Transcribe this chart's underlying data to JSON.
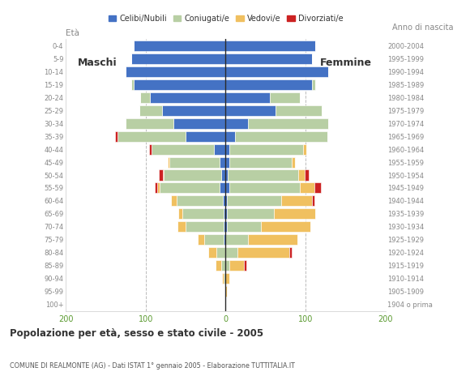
{
  "age_groups": [
    "100+",
    "95-99",
    "90-94",
    "85-89",
    "80-84",
    "75-79",
    "70-74",
    "65-69",
    "60-64",
    "55-59",
    "50-54",
    "45-49",
    "40-44",
    "35-39",
    "30-34",
    "25-29",
    "20-24",
    "15-19",
    "10-14",
    "5-9",
    "0-4"
  ],
  "birth_years": [
    "1904 o prima",
    "1905-1909",
    "1910-1914",
    "1915-1919",
    "1920-1924",
    "1925-1929",
    "1930-1934",
    "1935-1939",
    "1940-1944",
    "1945-1949",
    "1950-1954",
    "1955-1959",
    "1960-1964",
    "1965-1969",
    "1970-1974",
    "1975-1979",
    "1980-1984",
    "1985-1989",
    "1990-1994",
    "1995-1999",
    "2000-2004"
  ],
  "males": {
    "celibi": [
      0,
      0,
      0,
      0,
      0,
      2,
      2,
      2,
      3,
      8,
      5,
      8,
      15,
      50,
      65,
      80,
      95,
      115,
      125,
      118,
      115
    ],
    "coniugati": [
      0,
      0,
      2,
      5,
      12,
      25,
      48,
      52,
      58,
      75,
      72,
      62,
      78,
      85,
      60,
      28,
      12,
      3,
      0,
      0,
      0
    ],
    "vedovi": [
      0,
      0,
      2,
      8,
      10,
      8,
      10,
      5,
      7,
      3,
      2,
      2,
      0,
      0,
      0,
      0,
      0,
      0,
      0,
      0,
      0
    ],
    "divorziati": [
      0,
      0,
      0,
      0,
      0,
      0,
      0,
      0,
      0,
      3,
      5,
      0,
      3,
      3,
      0,
      0,
      0,
      0,
      0,
      0,
      0
    ]
  },
  "females": {
    "nubili": [
      0,
      0,
      0,
      0,
      0,
      0,
      2,
      2,
      2,
      5,
      3,
      5,
      5,
      12,
      28,
      62,
      55,
      108,
      128,
      108,
      112
    ],
    "coniugate": [
      0,
      0,
      0,
      5,
      15,
      28,
      42,
      58,
      68,
      88,
      88,
      78,
      92,
      115,
      100,
      58,
      38,
      4,
      0,
      0,
      0
    ],
    "vedove": [
      0,
      2,
      5,
      18,
      65,
      62,
      62,
      52,
      38,
      18,
      8,
      4,
      4,
      0,
      0,
      0,
      0,
      0,
      0,
      0,
      0
    ],
    "divorziate": [
      0,
      0,
      0,
      3,
      3,
      0,
      0,
      0,
      3,
      8,
      5,
      0,
      0,
      0,
      0,
      0,
      0,
      0,
      0,
      0,
      0
    ]
  },
  "colors": {
    "celibi": "#4472c4",
    "coniugati": "#b8cfa4",
    "vedovi": "#f0c060",
    "divorziati": "#cc2222"
  },
  "xlim": 200,
  "title": "Popolazione per età, sesso e stato civile - 2005",
  "subtitle": "COMUNE DI REALMONTE (AG) - Dati ISTAT 1° gennaio 2005 - Elaborazione TUTTITALIA.IT",
  "label_eta": "Età",
  "label_anno": "Anno di nascita",
  "label_maschi": "Maschi",
  "label_femmine": "Femmine",
  "legend_labels": [
    "Celibi/Nubili",
    "Coniugati/e",
    "Vedovi/e",
    "Divorziati/e"
  ],
  "bg_color": "#ffffff",
  "grid_color": "#bbbbbb",
  "axis_label_color": "#888888",
  "tick_color_green": "#5a9a2f",
  "spine_color": "#cccccc"
}
